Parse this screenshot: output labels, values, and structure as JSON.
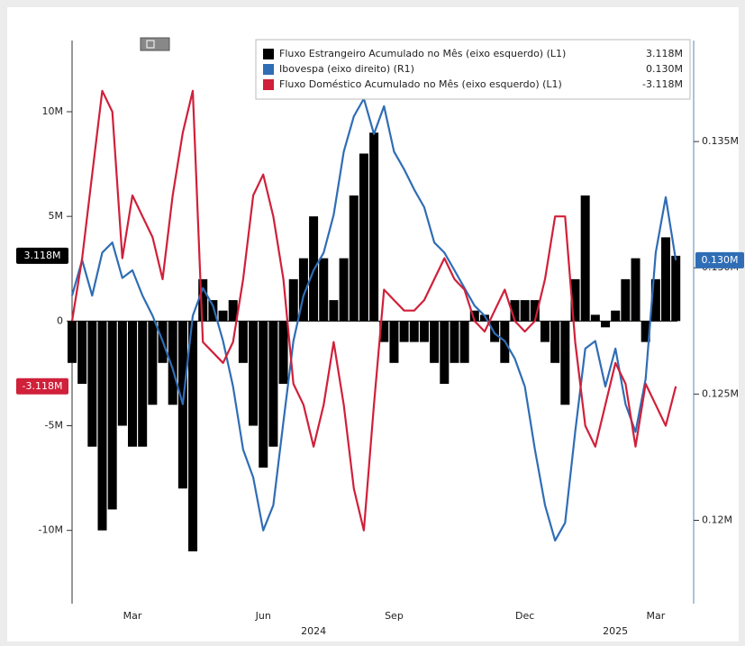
{
  "chart_data": {
    "type": "bar",
    "categories": [
      null,
      null,
      null,
      null,
      null,
      null,
      "Mar",
      null,
      null,
      null,
      null,
      null,
      null,
      null,
      null,
      null,
      null,
      null,
      null,
      "Jun",
      null,
      null,
      null,
      null,
      null,
      null,
      null,
      null,
      null,
      null,
      null,
      null,
      "Sep",
      null,
      null,
      null,
      null,
      null,
      null,
      null,
      null,
      null,
      null,
      null,
      null,
      "Dec",
      null,
      null,
      null,
      null,
      null,
      null,
      null,
      null,
      null,
      null,
      null,
      null,
      "Mar",
      null,
      null
    ],
    "year_categories": [
      null,
      null,
      null,
      null,
      null,
      null,
      null,
      null,
      null,
      null,
      null,
      null,
      null,
      null,
      null,
      null,
      null,
      null,
      null,
      null,
      null,
      null,
      null,
      null,
      "2024",
      null,
      null,
      null,
      null,
      null,
      null,
      null,
      null,
      null,
      null,
      null,
      null,
      null,
      null,
      null,
      null,
      null,
      null,
      null,
      null,
      null,
      null,
      null,
      null,
      null,
      null,
      null,
      null,
      null,
      "2025",
      null,
      null,
      null,
      null,
      null,
      null
    ],
    "series": [
      {
        "name": "Fluxo Estrangeiro Acumulado no Mês (eixo esquerdo) (L1)",
        "legend_value": "3.118M",
        "type": "bar",
        "axis": "y",
        "color": "#000000",
        "values": [
          -2,
          -3,
          -6,
          -10,
          -9,
          -5,
          -6,
          -6,
          -4,
          -2,
          -4,
          -8,
          -11,
          2,
          1,
          0.5,
          1,
          -2,
          -5,
          -7,
          -6,
          -3,
          2,
          3,
          5,
          3,
          1,
          3,
          6,
          8,
          9,
          -1,
          -2,
          -1,
          -1,
          -1,
          -2,
          -3,
          -2,
          -2,
          0.5,
          0.3,
          -1,
          -2,
          1,
          1,
          1,
          -1,
          -2,
          -4,
          2,
          6,
          0.3,
          -0.3,
          0.5,
          2,
          3,
          -1,
          2,
          4,
          3.118
        ]
      },
      {
        "name": "Ibovespa (eixo direito) (R1)",
        "legend_value": "0.130M",
        "type": "line",
        "axis": "y2",
        "color": "#2f6db5",
        "values": [
          0.1289,
          0.1303,
          0.1289,
          0.1306,
          0.131,
          0.1296,
          0.1299,
          0.1289,
          0.1281,
          0.1271,
          0.126,
          0.1246,
          0.1281,
          0.1292,
          0.1285,
          0.1271,
          0.1253,
          0.1228,
          0.1217,
          0.1196,
          0.1206,
          0.1239,
          0.1271,
          0.1289,
          0.1299,
          0.1306,
          0.1321,
          0.1346,
          0.136,
          0.1367,
          0.1353,
          0.1364,
          0.1346,
          0.1339,
          0.1331,
          0.1324,
          0.131,
          0.1306,
          0.1299,
          0.1292,
          0.1285,
          0.1281,
          0.1274,
          0.1271,
          0.1264,
          0.1253,
          0.1228,
          0.1206,
          0.1192,
          0.1199,
          0.1235,
          0.1268,
          0.1271,
          0.1253,
          0.1268,
          0.1246,
          0.1235,
          0.1256,
          0.1306,
          0.1328,
          0.1303
        ]
      },
      {
        "name": "Fluxo Doméstico Acumulado no Mês (eixo esquerdo) (L1)",
        "legend_value": "-3.118M",
        "type": "line",
        "axis": "y",
        "color": "#d0203a",
        "values": [
          0,
          3,
          7,
          11,
          10,
          3,
          6,
          5,
          4,
          2,
          6,
          9,
          11,
          -1,
          -1.5,
          -2,
          -1,
          2,
          6,
          7,
          5,
          2,
          -3,
          -4,
          -6,
          -4,
          -1,
          -4,
          -8,
          -10,
          -4,
          1.5,
          1,
          0.5,
          0.5,
          1,
          2,
          3,
          2,
          1.5,
          0,
          -0.5,
          0.5,
          1.5,
          0,
          -0.5,
          0,
          2,
          5,
          5,
          -1,
          -5,
          -6,
          -4,
          -2,
          -3,
          -6,
          -3,
          -4,
          -5,
          -3.118
        ]
      }
    ],
    "ylim": [
      -13.5,
      13.4
    ],
    "yticks": [
      {
        "value": -10,
        "label": "-10M"
      },
      {
        "value": -5,
        "label": "-5M"
      },
      0,
      {
        "value": 5,
        "label": "5M"
      },
      {
        "value": 10,
        "label": "10M"
      }
    ],
    "y2lim": [
      0.1167,
      0.139
    ],
    "y2ticks": [
      {
        "value": 0.12,
        "label": "0.12M"
      },
      {
        "value": 0.125,
        "label": "0.125M"
      },
      {
        "value": 0.13,
        "label": "0.130M"
      },
      {
        "value": 0.135,
        "label": "0.135M"
      }
    ],
    "legend": "top-right"
  }
}
